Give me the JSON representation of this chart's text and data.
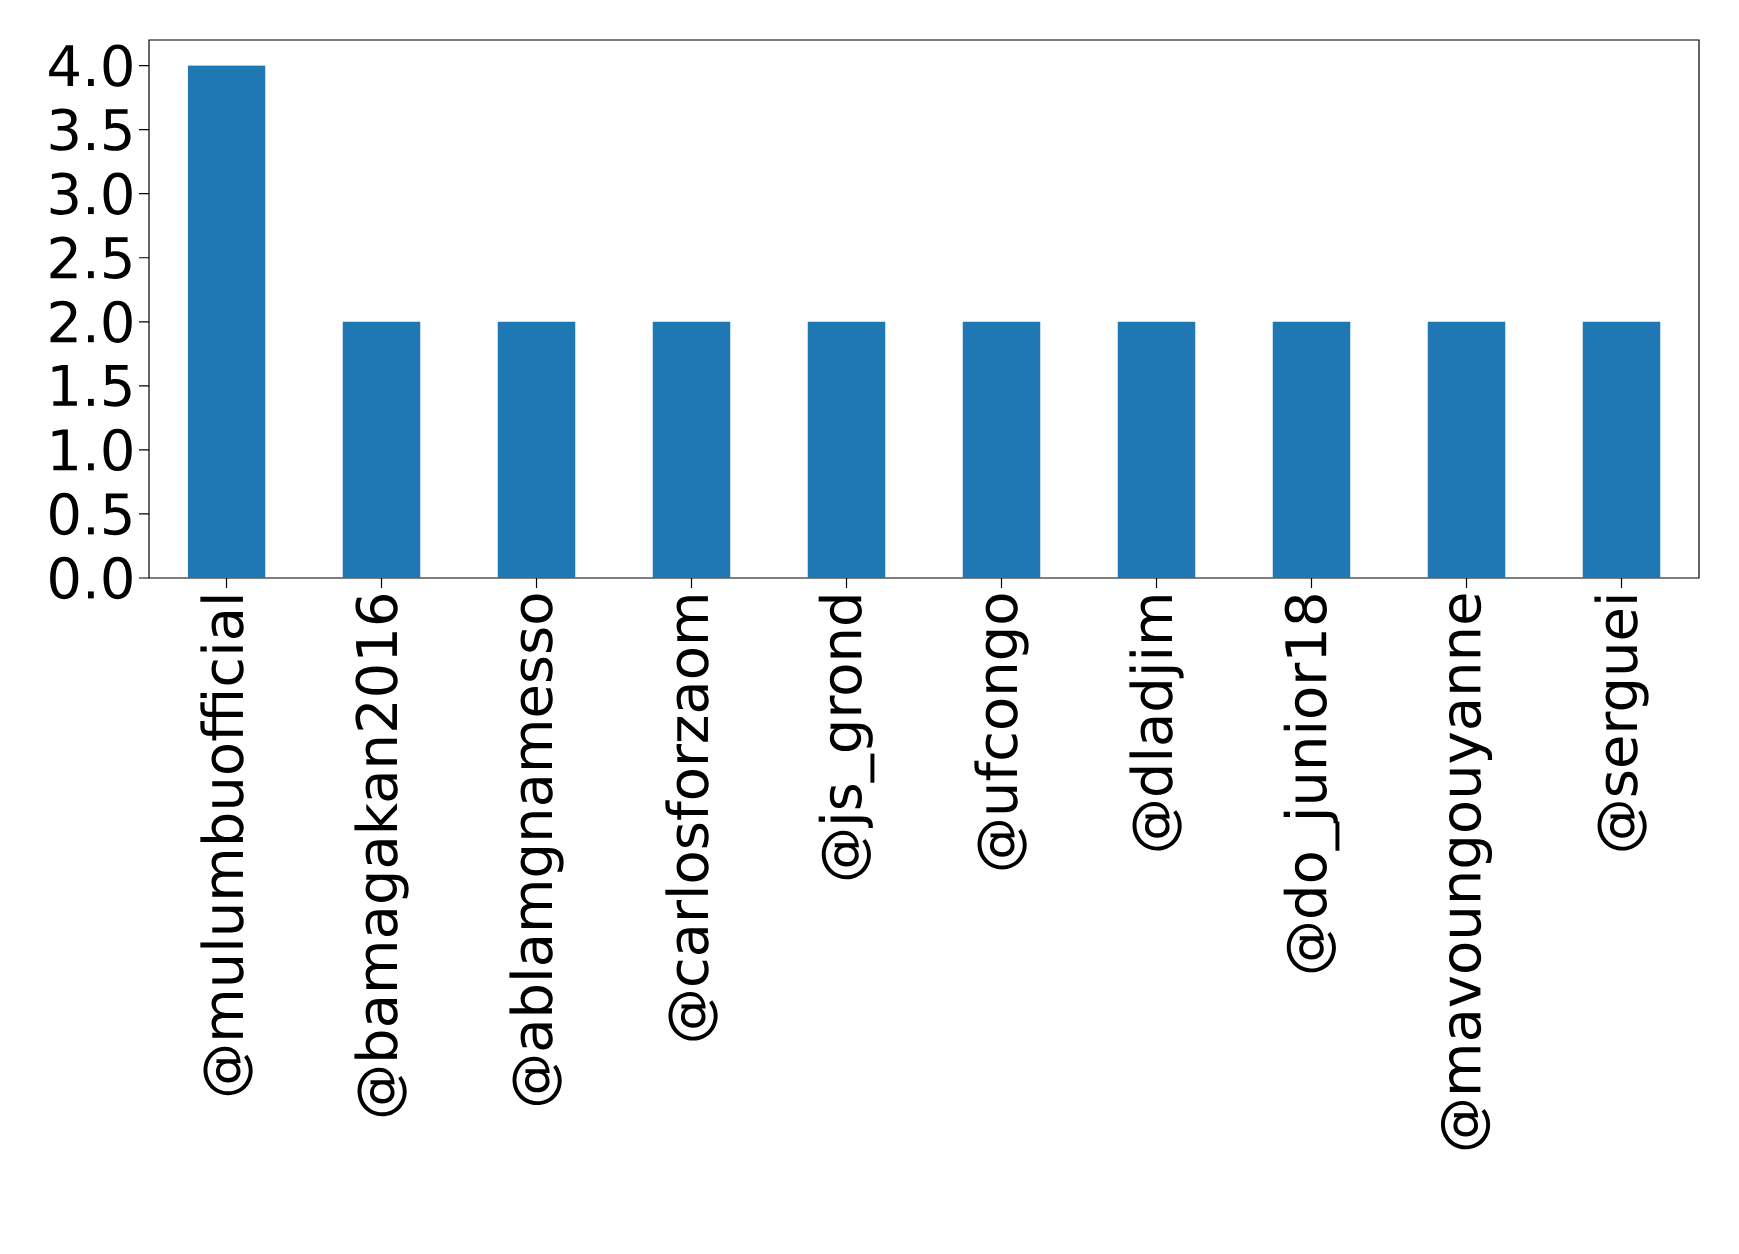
{
  "chart_data": {
    "type": "bar",
    "categories": [
      "@mulumbuofficial",
      "@bamagakan2016",
      "@ablamgnamesso",
      "@carlosforzaom",
      "@js_grond",
      "@ufcongo",
      "@dladjim",
      "@do_junior18",
      "@mavoungouyanne",
      "@serguei"
    ],
    "values": [
      4,
      2,
      2,
      2,
      2,
      2,
      2,
      2,
      2,
      2
    ],
    "color": "#1f77b4",
    "ylim": [
      0,
      4.2
    ],
    "yticks": [
      {
        "value": 0,
        "label": "0.0"
      },
      {
        "value": 0.5,
        "label": "0.5"
      },
      {
        "value": 1,
        "label": "1.0"
      },
      {
        "value": 1.5,
        "label": "1.5"
      },
      {
        "value": 2,
        "label": "2.0"
      },
      {
        "value": 2.5,
        "label": "2.5"
      },
      {
        "value": 3,
        "label": "3.0"
      },
      {
        "value": 3.5,
        "label": "3.5"
      },
      {
        "value": 4,
        "label": "4.0"
      }
    ],
    "grid": false
  }
}
